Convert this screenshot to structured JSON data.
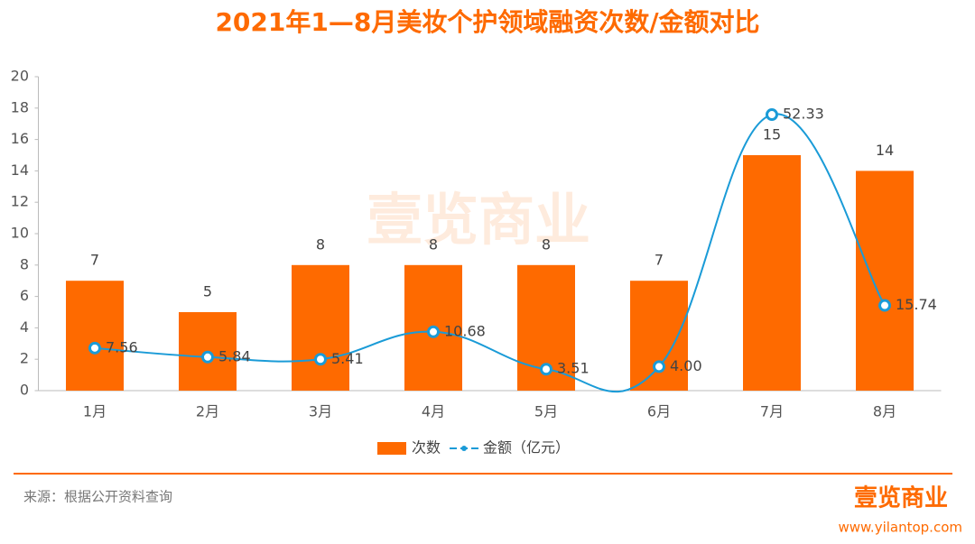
{
  "chart_data": {
    "type": "bar-line",
    "title": "2021年1—8月美妆个护领域融资次数/金额对比",
    "categories": [
      "1月",
      "2月",
      "3月",
      "4月",
      "5月",
      "6月",
      "7月",
      "8月"
    ],
    "series": [
      {
        "name": "次数",
        "type": "bar",
        "color": "#fe6a00",
        "values": [
          7,
          5,
          8,
          8,
          8,
          7,
          15,
          14
        ]
      },
      {
        "name": "金额（亿元）",
        "type": "line",
        "axis": "y2",
        "color": "#1a9bd7",
        "values": [
          7.56,
          5.84,
          5.41,
          10.68,
          3.51,
          4.0,
          52.33,
          15.74
        ],
        "value_labels": [
          "7.56",
          "5.84",
          "5.41",
          "10.68",
          "3.51",
          "4.00",
          "52.33",
          "15.74"
        ]
      }
    ],
    "ylim": [
      0,
      20
    ],
    "yticks": [
      0,
      2,
      4,
      6,
      8,
      10,
      12,
      14,
      16,
      18,
      20
    ],
    "y2lim": [
      -0.6,
      59.6
    ],
    "grid": false,
    "legend": "bottom"
  },
  "watermark": "壹览商业",
  "source": "来源：根据公开资料查询",
  "brand": "壹览商业",
  "website": "www.yilantop.com"
}
